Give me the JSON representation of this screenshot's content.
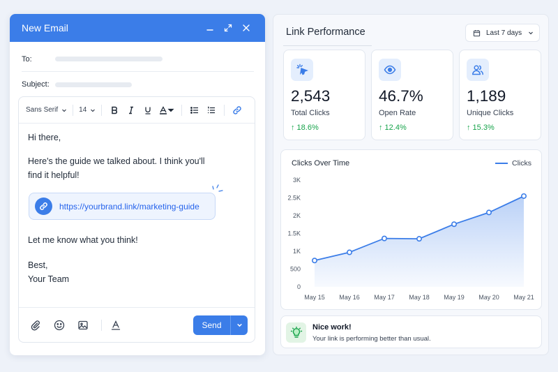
{
  "compose": {
    "title": "New Email",
    "to_label": "To:",
    "subject_label": "Subject:",
    "toolbar": {
      "font_family": "Sans Serif",
      "font_size": "14"
    },
    "body": {
      "greeting": "Hi there,",
      "line1": "Here's the guide we talked about. I think you'll",
      "line2": "find it helpful!",
      "link": "https://yourbrand.link/marketing-guide",
      "closing": "Let me know what you think!",
      "signoff": "Best,",
      "signature": "Your Team"
    },
    "send_label": "Send",
    "accent": "#3b7de8"
  },
  "panel": {
    "title": "Link Performance",
    "date_range": "Last 7 days",
    "stats": [
      {
        "icon": "cursor-click-icon",
        "value": "2,543",
        "label": "Total Clicks",
        "change": "↑ 18.6%"
      },
      {
        "icon": "eye-icon",
        "value": "46.7%",
        "label": "Open Rate",
        "change": "↑ 12.4%"
      },
      {
        "icon": "users-icon",
        "value": "1,189",
        "label": "Unique Clicks",
        "change": "↑ 15.3%"
      }
    ],
    "positive_color": "#16a34a",
    "notice": {
      "title": "Nice work!",
      "subtitle": "Your link is performing better than usual."
    }
  },
  "chart_data": {
    "type": "area",
    "title": "Clicks Over Time",
    "categories": [
      "May 15",
      "May 16",
      "May 17",
      "May 18",
      "May 19",
      "May 20",
      "May 21"
    ],
    "series": [
      {
        "name": "Clicks",
        "values": [
          740,
          970,
          1360,
          1350,
          1760,
          2090,
          2550
        ]
      }
    ],
    "yticks": [
      "0",
      "500",
      "1K",
      "1.5K",
      "2K",
      "2.5K",
      "3K"
    ],
    "ylim": [
      0,
      3000
    ],
    "legend": "top-right",
    "grid": false
  }
}
